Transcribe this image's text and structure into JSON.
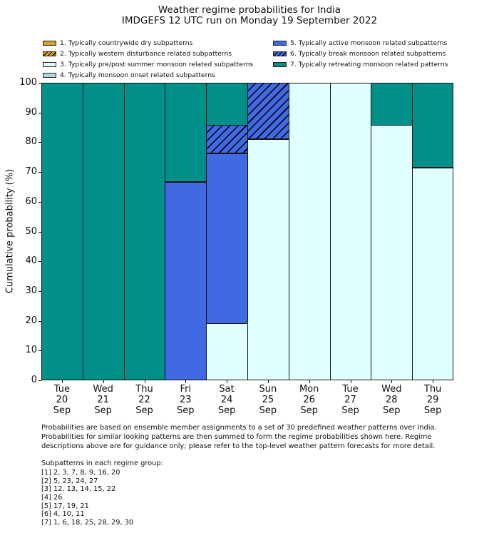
{
  "title": {
    "line1": "Weather regime probabilities for India",
    "line2": "IMDGEFS 12 UTC run on Monday 19 September 2022"
  },
  "ylabel": "Cumulative probability (%)",
  "chart_data": {
    "type": "bar",
    "stacked": true,
    "title": "Weather regime probabilities for India",
    "subtitle": "IMDGEFS 12 UTC run on Monday 19 September 2022",
    "xlabel": "",
    "ylabel": "Cumulative probability (%)",
    "ylim": [
      0,
      100
    ],
    "yticks": [
      0,
      10,
      20,
      30,
      40,
      50,
      60,
      70,
      80,
      90,
      100
    ],
    "grid": false,
    "legend_position": "top, two columns (1-4 left, 5-7 right)",
    "categories": [
      "Tue\n20\nSep",
      "Wed\n21\nSep",
      "Thu\n22\nSep",
      "Fri\n23\nSep",
      "Sat\n24\nSep",
      "Sun\n25\nSep",
      "Mon\n26\nSep",
      "Tue\n27\nSep",
      "Wed\n28\nSep",
      "Thu\n29\nSep"
    ],
    "series": [
      {
        "name": "1. Typically countrywide dry subpatterns",
        "color": "#D7A125",
        "hatch": false,
        "values": [
          0,
          0,
          0,
          0,
          0,
          0,
          0,
          0,
          0,
          0
        ]
      },
      {
        "name": "2. Typically western disturbance related subpatterns",
        "color": "#D7A125",
        "hatch": true,
        "values": [
          0,
          0,
          0,
          0,
          0,
          0,
          0,
          0,
          0,
          0
        ]
      },
      {
        "name": "3. Typically pre/post summer monsoon related subpatterns",
        "color": "#E0FFFF",
        "hatch": false,
        "values": [
          0,
          0,
          0,
          0,
          19.05,
          80.95,
          100,
          100,
          85.71,
          71.43
        ]
      },
      {
        "name": "4. Typically monsoon onset related subpatterns",
        "color": "#ADD8E6",
        "hatch": false,
        "values": [
          0,
          0,
          0,
          0,
          0,
          0,
          0,
          0,
          0,
          0
        ]
      },
      {
        "name": "5. Typically active monsoon related subpatterns",
        "color": "#4169E1",
        "hatch": false,
        "values": [
          0,
          0,
          0,
          66.67,
          57.14,
          0,
          0,
          0,
          0,
          0
        ]
      },
      {
        "name": "6. Typically break monsoon related subpatterns",
        "color": "#4169E1",
        "hatch": true,
        "values": [
          0,
          0,
          0,
          0,
          9.52,
          19.05,
          0,
          0,
          0,
          0
        ]
      },
      {
        "name": "7. Typically retreating monsoon related patterns",
        "color": "#009089",
        "hatch": false,
        "values": [
          100,
          100,
          100,
          33.33,
          14.29,
          0,
          0,
          0,
          14.29,
          28.57
        ]
      }
    ]
  },
  "footer": {
    "paragraph_lines": [
      "Probabilities are based on ensemble member assignments to a set of 30 predefined weather patterns over India.",
      "Probabilities for similar looking patterns are then summed to form the regime probabilities shown here. Regime",
      "descriptions above are for guidance only; please refer to the top-level weather pattern forecasts for more detail."
    ],
    "subpatterns_title": "Subpatterns in each regime group:",
    "subpatterns": [
      "[1] 2, 3, 7, 8, 9, 16, 20",
      "[2] 5, 23, 24, 27",
      "[3] 12, 13, 14, 15, 22",
      "[4] 26",
      "[5] 17, 19, 21",
      "[6] 4, 10, 11",
      "[7] 1, 6, 18, 25, 28, 29, 30"
    ]
  }
}
